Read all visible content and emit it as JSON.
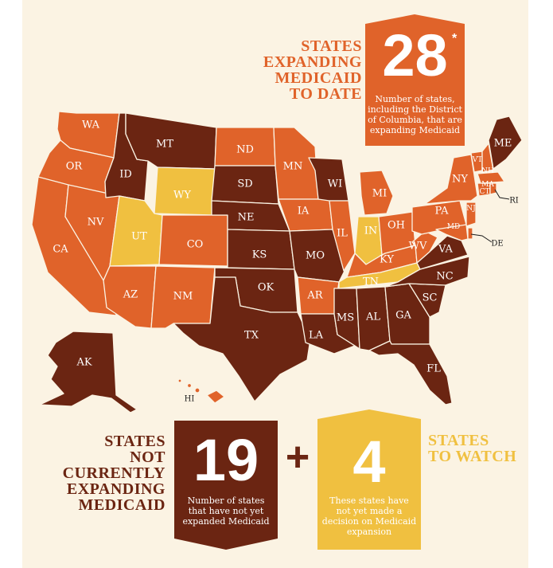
{
  "colors": {
    "expanding": "#e0632a",
    "not_expanding": "#6b2512",
    "watch": "#f0c040",
    "background": "#fbf3e3",
    "title_orange": "#e0632a",
    "title_brown": "#6b2512",
    "title_yellow": "#f0c040"
  },
  "header": {
    "title_lines": [
      "STATES",
      "EXPANDING",
      "MEDICAID",
      "TO DATE"
    ],
    "count": "28",
    "asterisk": "*",
    "description_lines": [
      "Number of states,",
      "including the District",
      "of Columbia, that are",
      "expanding Medicaid"
    ]
  },
  "footer": {
    "not_expanding": {
      "title_lines": [
        "STATES",
        "NOT",
        "CURRENTLY",
        "EXPANDING",
        "MEDICAID"
      ],
      "count": "19",
      "description_lines": [
        "Number of states",
        "that have not yet",
        "expanded Medicaid"
      ]
    },
    "plus": "+",
    "watch": {
      "title_lines": [
        "STATES",
        "TO WATCH"
      ],
      "count": "4",
      "description_lines": [
        "These states have",
        "not yet made a",
        "decision on Medicaid",
        "expansion"
      ]
    }
  },
  "states": {
    "WA": {
      "label": "WA",
      "status": "expanding"
    },
    "OR": {
      "label": "OR",
      "status": "expanding"
    },
    "CA": {
      "label": "CA",
      "status": "expanding"
    },
    "NV": {
      "label": "NV",
      "status": "expanding"
    },
    "ID": {
      "label": "ID",
      "status": "not_expanding"
    },
    "MT": {
      "label": "MT",
      "status": "not_expanding"
    },
    "WY": {
      "label": "WY",
      "status": "watch"
    },
    "UT": {
      "label": "UT",
      "status": "watch"
    },
    "CO": {
      "label": "CO",
      "status": "expanding"
    },
    "AZ": {
      "label": "AZ",
      "status": "expanding"
    },
    "NM": {
      "label": "NM",
      "status": "expanding"
    },
    "ND": {
      "label": "ND",
      "status": "expanding"
    },
    "SD": {
      "label": "SD",
      "status": "not_expanding"
    },
    "NE": {
      "label": "NE",
      "status": "not_expanding"
    },
    "KS": {
      "label": "KS",
      "status": "not_expanding"
    },
    "OK": {
      "label": "OK",
      "status": "not_expanding"
    },
    "TX": {
      "label": "TX",
      "status": "not_expanding"
    },
    "MN": {
      "label": "MN",
      "status": "expanding"
    },
    "IA": {
      "label": "IA",
      "status": "expanding"
    },
    "MO": {
      "label": "MO",
      "status": "not_expanding"
    },
    "AR": {
      "label": "AR",
      "status": "expanding"
    },
    "LA": {
      "label": "LA",
      "status": "not_expanding"
    },
    "WI": {
      "label": "WI",
      "status": "not_expanding"
    },
    "IL": {
      "label": "IL",
      "status": "expanding"
    },
    "MI": {
      "label": "MI",
      "status": "expanding"
    },
    "IN": {
      "label": "IN",
      "status": "watch"
    },
    "OH": {
      "label": "OH",
      "status": "expanding"
    },
    "KY": {
      "label": "KY",
      "status": "expanding"
    },
    "TN": {
      "label": "TN",
      "status": "watch"
    },
    "MS": {
      "label": "MS",
      "status": "not_expanding"
    },
    "AL": {
      "label": "AL",
      "status": "not_expanding"
    },
    "GA": {
      "label": "GA",
      "status": "not_expanding"
    },
    "FL": {
      "label": "FL",
      "status": "not_expanding"
    },
    "SC": {
      "label": "SC",
      "status": "not_expanding"
    },
    "NC": {
      "label": "NC",
      "status": "not_expanding"
    },
    "VA": {
      "label": "VA",
      "status": "not_expanding"
    },
    "WV": {
      "label": "WV",
      "status": "expanding"
    },
    "PA": {
      "label": "PA",
      "status": "expanding"
    },
    "NY": {
      "label": "NY",
      "status": "expanding"
    },
    "ME": {
      "label": "ME",
      "status": "not_expanding"
    },
    "VT": {
      "label": "VT",
      "status": "expanding"
    },
    "NH": {
      "label": "NH",
      "status": "expanding"
    },
    "MA": {
      "label": "MA",
      "status": "expanding"
    },
    "CT": {
      "label": "CT",
      "status": "expanding"
    },
    "RI": {
      "label": "RI",
      "status": "expanding"
    },
    "NJ": {
      "label": "NJ",
      "status": "expanding"
    },
    "DE": {
      "label": "DE",
      "status": "expanding"
    },
    "MD": {
      "label": "MD",
      "status": "expanding"
    },
    "AK": {
      "label": "AK",
      "status": "not_expanding"
    },
    "HI": {
      "label": "HI",
      "status": "expanding"
    }
  }
}
